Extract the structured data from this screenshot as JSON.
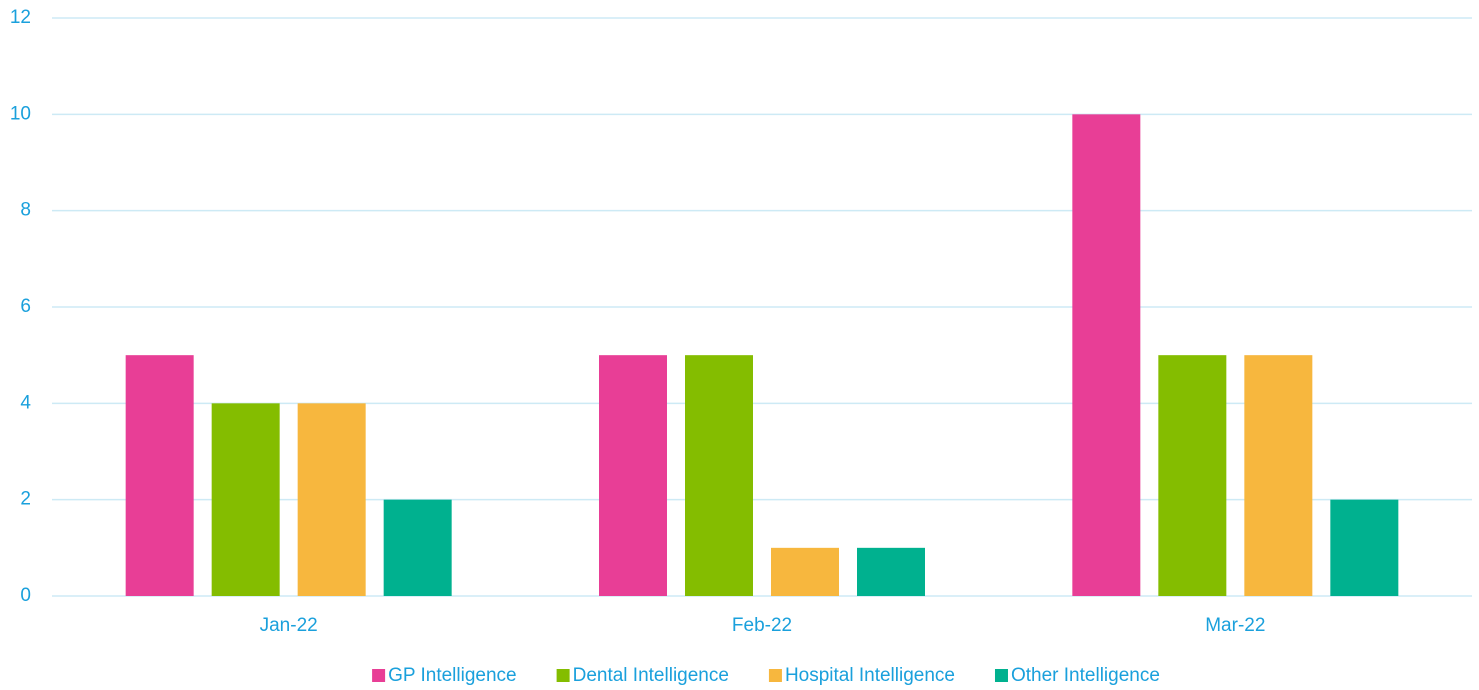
{
  "chart_data": {
    "type": "bar",
    "categories": [
      "Jan-22",
      "Feb-22",
      "Mar-22"
    ],
    "series": [
      {
        "name": "GP Intelligence",
        "color": "#e83e96",
        "values": [
          5,
          5,
          10
        ]
      },
      {
        "name": "Dental Intelligence",
        "color": "#84bd00",
        "values": [
          4,
          5,
          5
        ]
      },
      {
        "name": "Hospital Intelligence",
        "color": "#f7b73e",
        "values": [
          4,
          1,
          5
        ]
      },
      {
        "name": "Other Intelligence",
        "color": "#00b18f",
        "values": [
          2,
          1,
          2
        ]
      }
    ],
    "ylim": [
      0,
      12
    ],
    "yticks": [
      0,
      2,
      4,
      6,
      8,
      10,
      12
    ],
    "grid": true,
    "legend": "bottom"
  }
}
